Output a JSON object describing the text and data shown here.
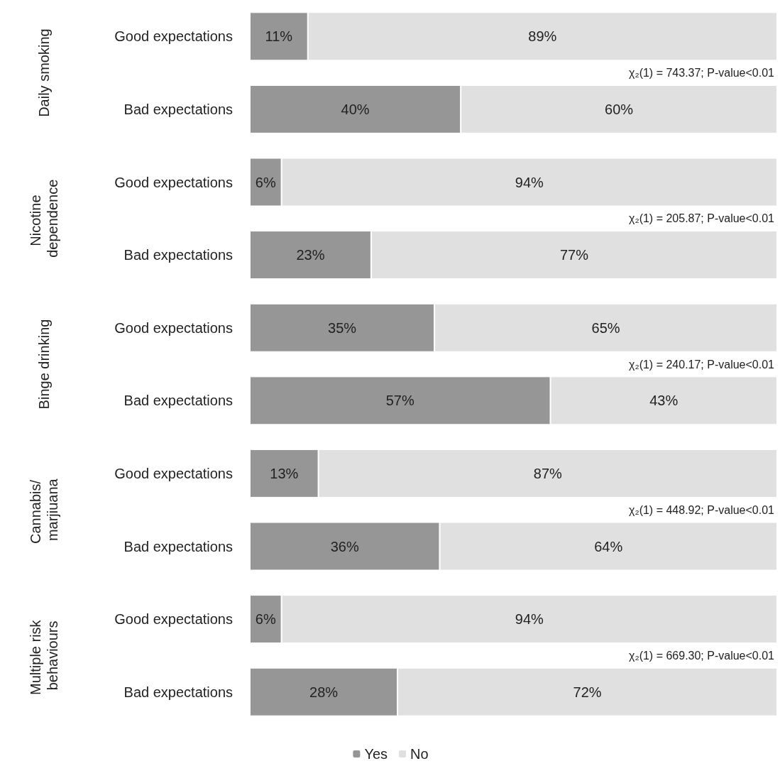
{
  "chart_data": {
    "type": "bar",
    "orientation": "horizontal",
    "stacked": true,
    "categories": [
      "Good expectations",
      "Bad expectations",
      "Good expectations",
      "Bad expectations",
      "Good expectations",
      "Bad expectations",
      "Good expectations",
      "Bad expectations",
      "Good expectations",
      "Bad expectations"
    ],
    "series": [
      {
        "name": "Yes",
        "color": "#969696",
        "values": [
          11,
          40,
          6,
          23,
          35,
          57,
          13,
          36,
          6,
          28
        ],
        "value_labels": [
          "11%",
          "40%",
          "6%",
          "23%",
          "35%",
          "57%",
          "13%",
          "36%",
          "6%",
          "28%"
        ]
      },
      {
        "name": "No",
        "color": "#e0e0e0",
        "values": [
          89,
          60,
          94,
          77,
          65,
          43,
          87,
          64,
          94,
          72
        ],
        "value_labels": [
          "89%",
          "60%",
          "94%",
          "77%",
          "65%",
          "43%",
          "87%",
          "64%",
          "94%",
          "72%"
        ]
      }
    ],
    "xlim": [
      0,
      100
    ],
    "tick_labels": "y",
    "grid": false,
    "legend": "bottom",
    "annotations": [
      "Daily smoking",
      "Nicotine dependence",
      "Binge drinking",
      "Cannabis/ marjiuana",
      "Multiple risk behaviours",
      "χ₂(1) = 743.37; P-value<0.01",
      "χ₂(1) = 205.87; P-value<0.01",
      "χ₂(1) = 240.17; P-value<0.01",
      "χ₂(1) = 448.92; P-value<0.01",
      "χ₂(1) = 669.30; P-value<0.01"
    ]
  }
}
